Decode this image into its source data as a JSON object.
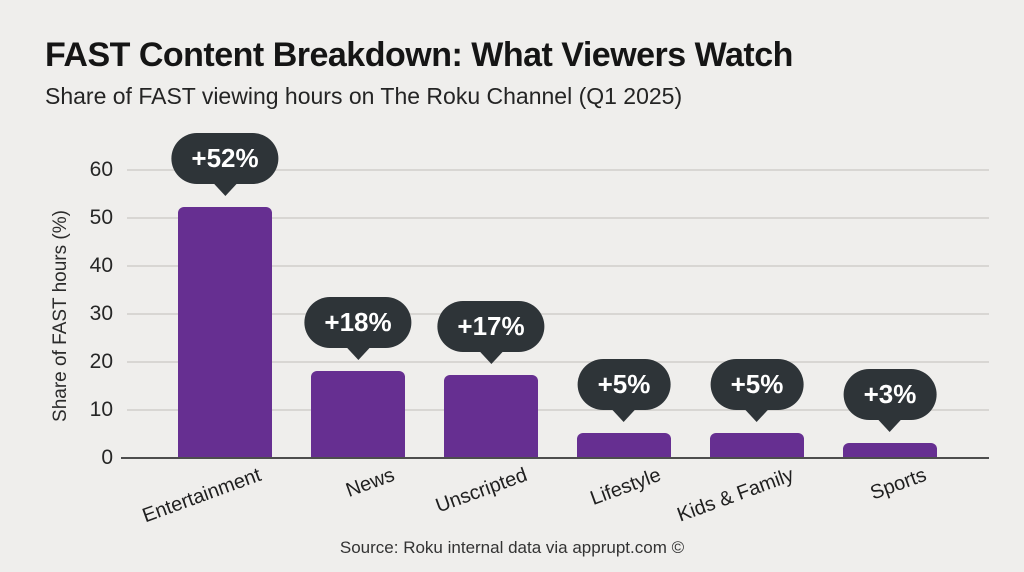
{
  "page": {
    "background_color": "#efeeec"
  },
  "header": {
    "title": "FAST Content Breakdown: What Viewers Watch",
    "subtitle": "Share of FAST viewing hours on The Roku Channel (Q1 2025)"
  },
  "chart_data": {
    "type": "bar",
    "title": "FAST Content Breakdown: What Viewers Watch",
    "subtitle": "Share of FAST viewing hours on The Roku Channel (Q1 2025)",
    "categories": [
      "Entertainment",
      "News",
      "Unscripted",
      "Lifestyle",
      "Kids & Family",
      "Sports"
    ],
    "values": [
      52,
      18,
      17,
      5,
      5,
      3
    ],
    "callout_labels": [
      "+52%",
      "+18%",
      "+17%",
      "+5%",
      "+5%",
      "+3%"
    ],
    "xlabel": "",
    "ylabel": "Share of FAST hours (%)",
    "ylim": [
      0,
      60
    ],
    "yticks": [
      0,
      10,
      20,
      30,
      40,
      50,
      60
    ],
    "grid": true,
    "legend": "none",
    "bar_color": "#662f91",
    "callout_bg": "#2e3438",
    "callout_text_color": "#ffffff"
  },
  "footer": {
    "source": "Source: Roku internal data via apprupt.com ©"
  }
}
